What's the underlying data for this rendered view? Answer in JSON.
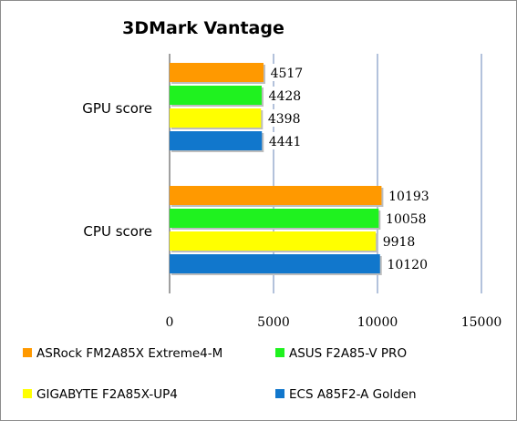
{
  "chart_data": {
    "type": "bar",
    "orientation": "horizontal",
    "title": "3DMark Vantage",
    "categories": [
      "GPU score",
      "CPU score"
    ],
    "series": [
      {
        "name": "ASRock FM2A85X Extreme4-M",
        "color": "#ff9900",
        "values": [
          4517,
          10193
        ]
      },
      {
        "name": "ASUS F2A85-V PRO",
        "color": "#1ff21f",
        "values": [
          4428,
          10058
        ]
      },
      {
        "name": "GIGABYTE F2A85X-UP4",
        "color": "#ffff00",
        "values": [
          4398,
          9918
        ]
      },
      {
        "name": "ECS A85F2-A Golden",
        "color": "#1177cc",
        "values": [
          4441,
          10120
        ]
      }
    ],
    "xlim": [
      0,
      15000
    ],
    "xticks": [
      0,
      5000,
      10000,
      15000
    ],
    "xlabel": "",
    "ylabel": "",
    "grid": true,
    "legend": "bottom",
    "data_labels": true
  }
}
